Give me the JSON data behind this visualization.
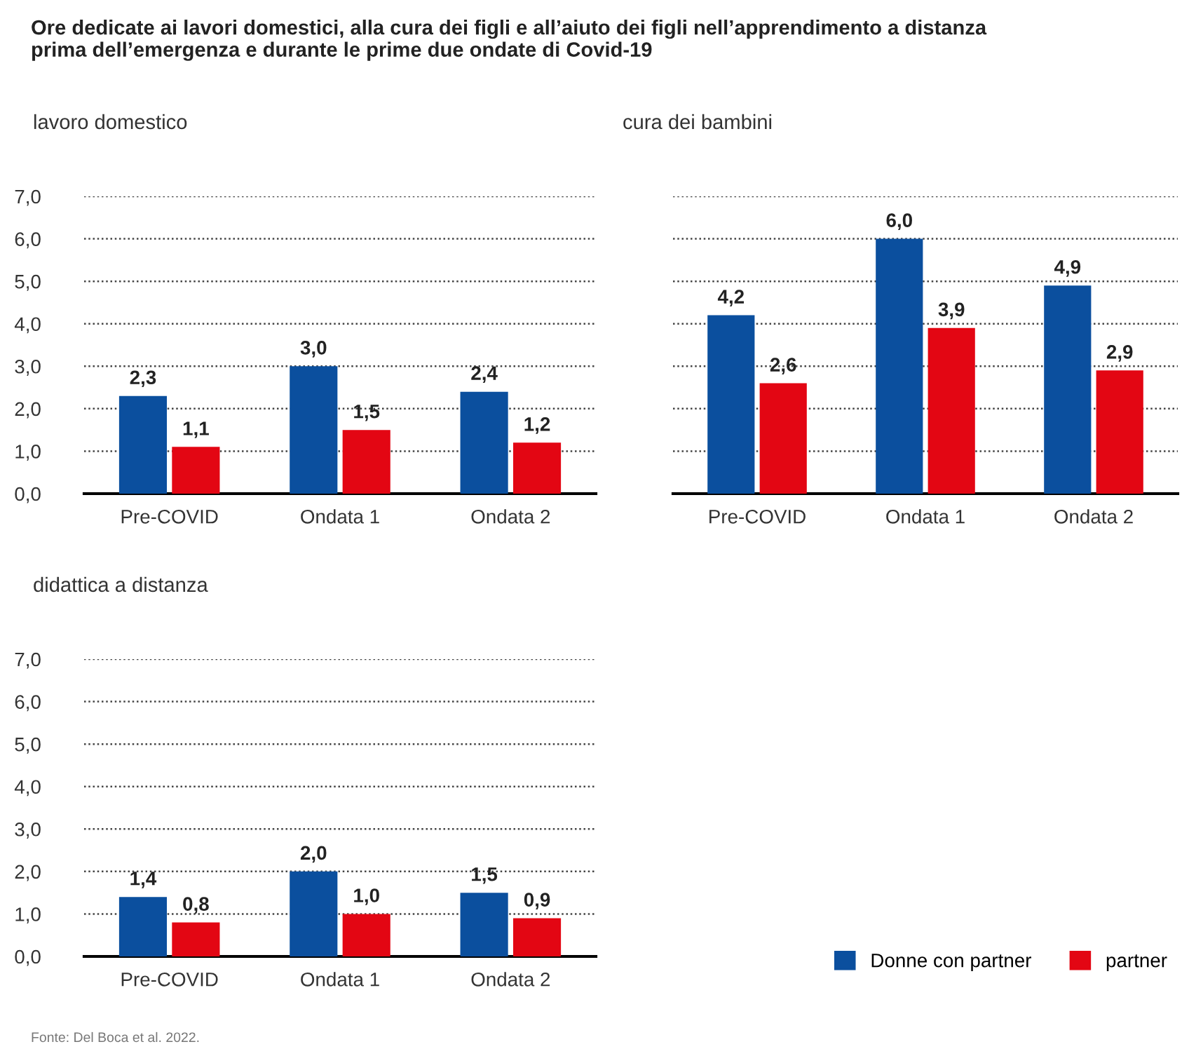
{
  "chart_data": [
    {
      "type": "bar",
      "title": "Ore dedicate ai lavori domestici, alla cura dei figli e all’aiuto dei figli nell’apprendimento a distanza\nprima dell’emergenza e durante le prime due ondate di Covid-19",
      "subtitle": "lavoro domestico",
      "categories": [
        "Pre-COVID",
        "Ondata 1",
        "Ondata 2"
      ],
      "series": [
        {
          "name": "Donne con partner",
          "color": "#0b4f9e",
          "values": [
            2.3,
            3.0,
            2.4
          ],
          "value_labels": [
            "2,3",
            "3,0",
            "2,4"
          ]
        },
        {
          "name": "partner",
          "color": "#e30613",
          "values": [
            1.1,
            1.5,
            1.2
          ],
          "value_labels": [
            "1,1",
            "1,5",
            "1,2"
          ]
        }
      ],
      "ylim": [
        0,
        7
      ],
      "yticks": [
        {
          "value": 0,
          "label": "0,0"
        },
        {
          "value": 1,
          "label": "1,0"
        },
        {
          "value": 2,
          "label": "2,0"
        },
        {
          "value": 3,
          "label": "3,0"
        },
        {
          "value": 4,
          "label": "4,0"
        },
        {
          "value": 5,
          "label": "5,0"
        },
        {
          "value": 6,
          "label": "6,0"
        },
        {
          "value": 7,
          "label": "7,0"
        }
      ],
      "grid": "y",
      "legend": "bottom right"
    },
    {
      "type": "bar",
      "subtitle": "cura dei bambini",
      "categories": [
        "Pre-COVID",
        "Ondata 1",
        "Ondata 2"
      ],
      "series": [
        {
          "color": "#0b4f9e",
          "values": [
            4.2,
            6.0,
            4.9
          ],
          "value_labels": [
            "4,2",
            "6,0",
            "4,9"
          ]
        },
        {
          "color": "#e30613",
          "values": [
            2.6,
            3.9,
            2.9
          ],
          "value_labels": [
            "2,6",
            "3,9",
            "2,9"
          ]
        }
      ],
      "ylim": [
        0,
        7
      ],
      "yticks": [
        0,
        1,
        2,
        3,
        4,
        5,
        6,
        7
      ],
      "grid": "y",
      "tick_labels": "x"
    },
    {
      "type": "bar",
      "subtitle": "didattica a distanza",
      "categories": [
        "Pre-COVID",
        "Ondata 1",
        "Ondata 2"
      ],
      "series": [
        {
          "color": "#0b4f9e",
          "values": [
            1.4,
            2.0,
            1.5
          ],
          "value_labels": [
            "1,4",
            "2,0",
            "1,5"
          ]
        },
        {
          "color": "#e30613",
          "values": [
            0.8,
            1.0,
            0.9
          ],
          "value_labels": [
            "0,8",
            "1,0",
            "0,9"
          ]
        }
      ],
      "ylim": [
        0,
        7
      ],
      "yticks": [
        {
          "value": 0,
          "label": "0,0"
        },
        {
          "value": 1,
          "label": "1,0"
        },
        {
          "value": 2,
          "label": "2,0"
        },
        {
          "value": 3,
          "label": "3,0"
        },
        {
          "value": 4,
          "label": "4,0"
        },
        {
          "value": 5,
          "label": "5,0"
        },
        {
          "value": 6,
          "label": "6,0"
        },
        {
          "value": 7,
          "label": "7,0"
        }
      ],
      "grid": "y",
      "annotations": [
        "Fonte: Del Boca et al. 2022."
      ]
    }
  ]
}
